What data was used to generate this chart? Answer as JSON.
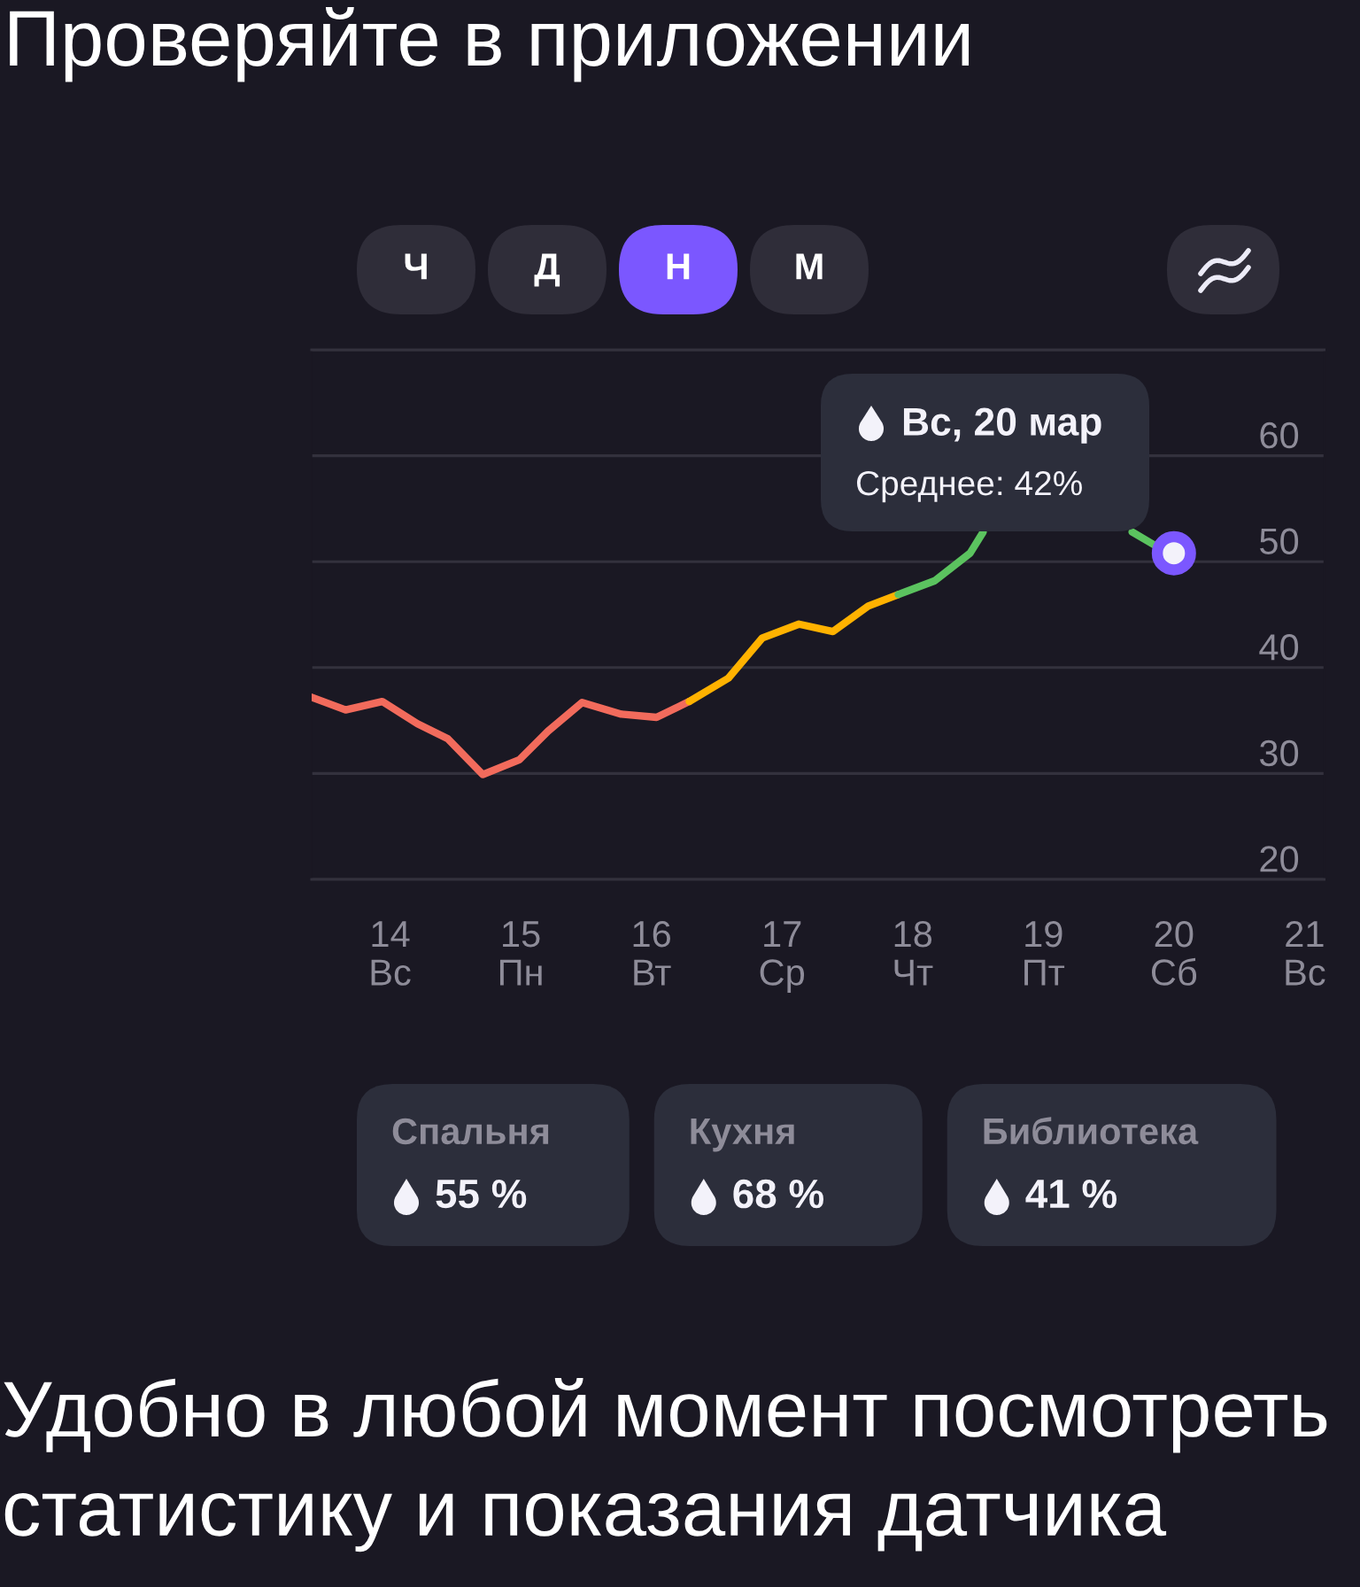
{
  "chart_data": [
    {
      "type": "other",
      "title": "Проверяйте в приложении",
      "categories": [
        "Ч",
        "Д",
        "Н",
        "М"
      ],
      "colors": [
        "#2f2d39",
        "#2f2d39",
        "#7b57ff",
        "#2f2d39"
      ]
    },
    {
      "type": "line",
      "xlim": [
        13.4,
        21.15
      ],
      "ylim": [
        20,
        70
      ],
      "xticks": [
        {
          "value": 14,
          "label": "14\nВс"
        },
        {
          "value": 15,
          "label": "15\nПн"
        },
        {
          "value": 16,
          "label": "16\nВт"
        },
        {
          "value": 17,
          "label": "17\nСр"
        },
        {
          "value": 18,
          "label": "18\nЧт"
        },
        {
          "value": 19,
          "label": "19\nПт"
        },
        {
          "value": 20,
          "label": "20\nСб"
        },
        {
          "value": 21,
          "label": "21\nВс"
        }
      ],
      "yticks": [
        20,
        30,
        40,
        50,
        60,
        {
          "value": 70,
          "label": null
        }
      ],
      "grid": "y",
      "series": [
        {
          "color": "#f26b5c",
          "x": [
            13.4,
            13.66,
            13.94,
            14.21,
            14.44,
            14.71,
            14.99,
            15.21,
            15.47,
            15.77,
            16.04,
            16.29
          ],
          "values": [
            37.2,
            36.0,
            36.8,
            34.7,
            33.3,
            29.9,
            31.3,
            34.0,
            36.7,
            35.6,
            35.3,
            36.8
          ]
        },
        {
          "color": "#ffb200",
          "x": [
            16.29,
            16.59,
            16.85,
            17.13,
            17.39,
            17.66,
            17.89
          ],
          "values": [
            36.8,
            39.0,
            42.8,
            44.1,
            43.4,
            45.8,
            46.9
          ]
        },
        {
          "color": "#5bc35f",
          "x": [
            17.89,
            18.17,
            18.44,
            18.54,
            19.1,
            19.68,
            19.86
          ],
          "values": [
            46.9,
            48.2,
            50.8,
            52.8,
            null,
            52.8,
            51.5
          ]
        },
        {
          "type": "scatter",
          "marker": "circle",
          "color": "#7b57ff",
          "x": [
            20.0
          ],
          "values": [
            50.8
          ]
        }
      ],
      "annotations": [
        "Вс, 20 мар",
        "Среднее: 42%"
      ]
    },
    {
      "type": "other",
      "categories": [
        "Спальня",
        "Кухня",
        "Библиотека"
      ],
      "value_labels": [
        "55 %",
        "68 %",
        "41 %"
      ],
      "annotations": [
        "Удобно в любой момент посмотреть статистику и показания датчика"
      ]
    }
  ]
}
